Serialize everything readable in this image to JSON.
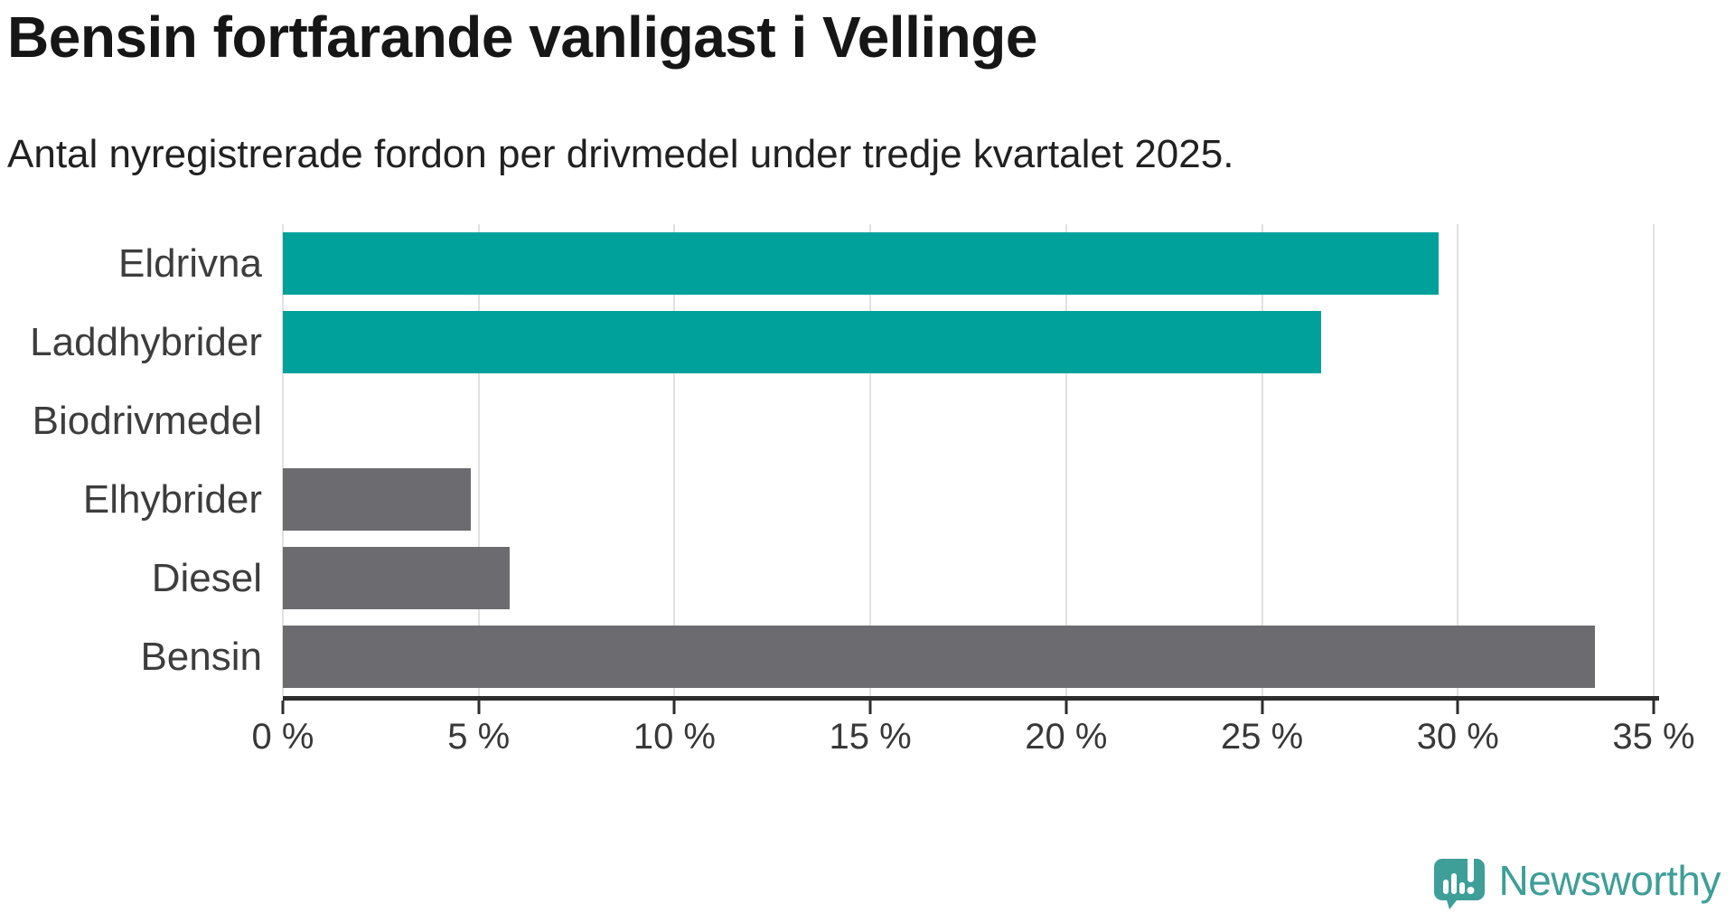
{
  "header": {
    "title": "Bensin fortfarande vanligast i Vellinge",
    "subtitle": "Antal nyregistrerade fordon per drivmedel under tredje kvartalet 2025."
  },
  "chart_data": {
    "type": "bar",
    "orientation": "horizontal",
    "title": "Bensin fortfarande vanligast i Vellinge",
    "subtitle": "Antal nyregistrerade fordon per drivmedel under tredje kvartalet 2025.",
    "categories": [
      "Eldrivna",
      "Laddhybrider",
      "Biodrivmedel",
      "Elhybrider",
      "Diesel",
      "Bensin"
    ],
    "values": [
      29.5,
      26.5,
      0,
      4.8,
      5.8,
      33.5
    ],
    "unit": "%",
    "bar_colors": [
      "#00a19a",
      "#00a19a",
      "#6b6b70",
      "#6b6b70",
      "#6b6b70",
      "#6b6b70"
    ],
    "highlight_color": "#00a19a",
    "default_bar_color": "#6b6b70",
    "xlim": [
      0,
      35
    ],
    "x_ticks": [
      0,
      5,
      10,
      15,
      20,
      25,
      30,
      35
    ],
    "x_tick_labels": [
      "0 %",
      "5 %",
      "10 %",
      "15 %",
      "20 %",
      "25 %",
      "30 %",
      "35 %"
    ],
    "grid": "vertical",
    "gridline_color": "#e1e1e4",
    "axis_color": "#2d2d2d",
    "legend": "none"
  },
  "footer": {
    "brand": "Newsworthy",
    "brand_color": "#3e9e98"
  }
}
